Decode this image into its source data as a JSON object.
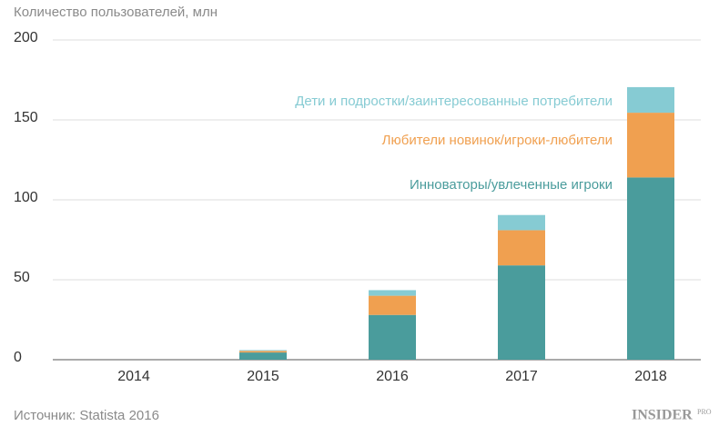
{
  "chart_data": {
    "type": "stacked_bar",
    "y_label": "Количество пользователей, млн",
    "categories": [
      "2014",
      "2015",
      "2016",
      "2017",
      "2018"
    ],
    "series": [
      {
        "name": "Инноваторы/увлеченные игроки",
        "color": "#4a9c9c",
        "values": [
          0,
          4.5,
          28,
          59,
          114
        ]
      },
      {
        "name": "Любители новинок/игроки-любители",
        "color": "#f0a050",
        "values": [
          0,
          1,
          12,
          22,
          40.5
        ]
      },
      {
        "name": "Дети и подростки/заинтересованные потребители",
        "color": "#86cbd3",
        "values": [
          0,
          0.5,
          3.5,
          9.5,
          16
        ]
      }
    ],
    "ylim": [
      0,
      200
    ],
    "yticks": [
      0,
      50,
      100,
      150,
      200
    ],
    "grid": true,
    "source": "Источник: Statista 2016",
    "logo": "INSIDER",
    "logo_suffix": "PRO"
  }
}
